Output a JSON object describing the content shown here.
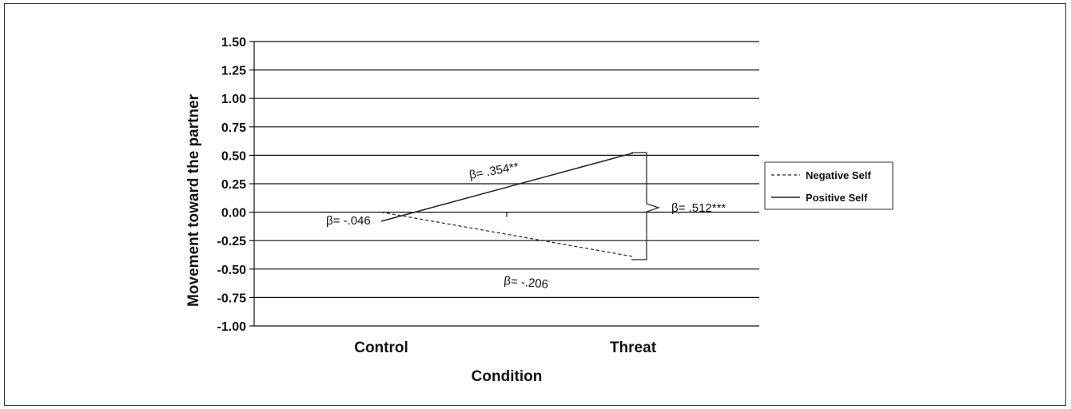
{
  "chart_data": {
    "type": "line",
    "xlabel": "Condition",
    "ylabel": "Movement toward the partner",
    "categories": [
      "Control",
      "Threat"
    ],
    "ylim": [
      -1.0,
      1.5
    ],
    "yticks": [
      "1.50",
      "1.25",
      "1.00",
      "0.75",
      "0.50",
      "0.25",
      "0.00",
      "-0.25",
      "-0.50",
      "-0.75",
      "-1.00"
    ],
    "ytick_values": [
      1.5,
      1.25,
      1.0,
      0.75,
      0.5,
      0.25,
      0.0,
      -0.25,
      -0.5,
      -0.75,
      -1.0
    ],
    "grid": true,
    "legend_position": "right",
    "series": [
      {
        "name": "Negative Self",
        "line_style": "dashed",
        "values": [
          0.0,
          -0.39
        ]
      },
      {
        "name": "Positive Self",
        "line_style": "solid",
        "values": [
          -0.08,
          0.52
        ]
      }
    ],
    "annotations": {
      "control_slope": "β= -.046",
      "positive_slope": "β= .354**",
      "negative_slope": "β= -.206",
      "threat_difference": "β= .512***"
    }
  }
}
